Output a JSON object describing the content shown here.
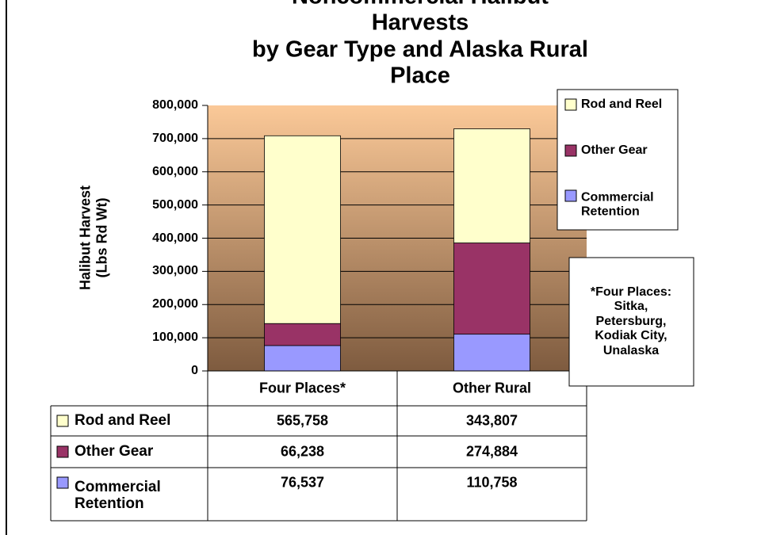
{
  "chart_data": {
    "type": "stacked_bar",
    "title": "Noncommercial Halibut Harvests\nby Gear Type and Alaska Rural Place",
    "y_label": "Halibut Harvest\n(Lbs Rd Wt)",
    "categories": [
      "Four Places*",
      "Other Rural"
    ],
    "series": [
      {
        "name": "Rod and Reel",
        "color": "#ffffcc",
        "values": [
          565758,
          343807
        ],
        "value_labels": [
          "565,758",
          "343,807"
        ]
      },
      {
        "name": "Other Gear",
        "color": "#993366",
        "values": [
          66238,
          274884
        ],
        "value_labels": [
          "66,238",
          "274,884"
        ]
      },
      {
        "name": "Commercial\nRetention",
        "color": "#9999ff",
        "values": [
          76537,
          110758
        ],
        "value_labels": [
          "76,537",
          "110,758"
        ]
      }
    ],
    "ylim": [
      0,
      800000
    ],
    "yticks": [
      0,
      {
        "value": 100000,
        "label": "100,000"
      },
      {
        "value": 200000,
        "label": "200,000"
      },
      {
        "value": 300000,
        "label": "300,000"
      },
      {
        "value": 400000,
        "label": "400,000"
      },
      {
        "value": 500000,
        "label": "500,000"
      },
      {
        "value": 600000,
        "label": "600,000"
      },
      {
        "value": 700000,
        "label": "700,000"
      },
      {
        "value": 800000,
        "label": "800,000"
      }
    ],
    "grid": true,
    "legend": "top-right",
    "note": "*Four Places:\nSitka,\nPetersburg,\nKodiak City,\nUnalaska"
  }
}
